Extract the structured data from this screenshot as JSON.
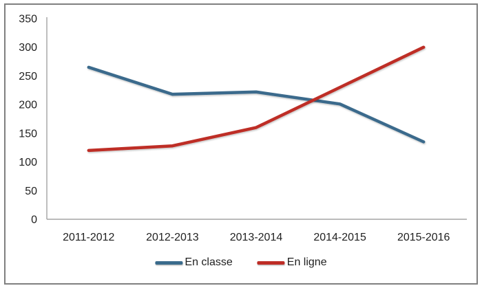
{
  "chart_data": {
    "type": "line",
    "title": "",
    "xlabel": "",
    "ylabel": "",
    "categories": [
      "2011-2012",
      "2012-2013",
      "2013-2014",
      "2014-2015",
      "2015-2016"
    ],
    "series": [
      {
        "name": "En classe",
        "color": "#3A6B8C",
        "values": [
          265,
          218,
          222,
          201,
          135
        ]
      },
      {
        "name": "En ligne",
        "color": "#BE2D26",
        "values": [
          120,
          128,
          160,
          230,
          300
        ]
      }
    ],
    "ylim": [
      0,
      350
    ],
    "yticks": [
      0,
      50,
      100,
      150,
      200,
      250,
      300,
      350
    ],
    "grid": false,
    "legend_position": "bottom-center",
    "colors": {
      "axis": "#A3A3A3",
      "text": "#1F1F1F",
      "frame_border": "#7F7F7F",
      "background": "#FFFFFF"
    }
  }
}
